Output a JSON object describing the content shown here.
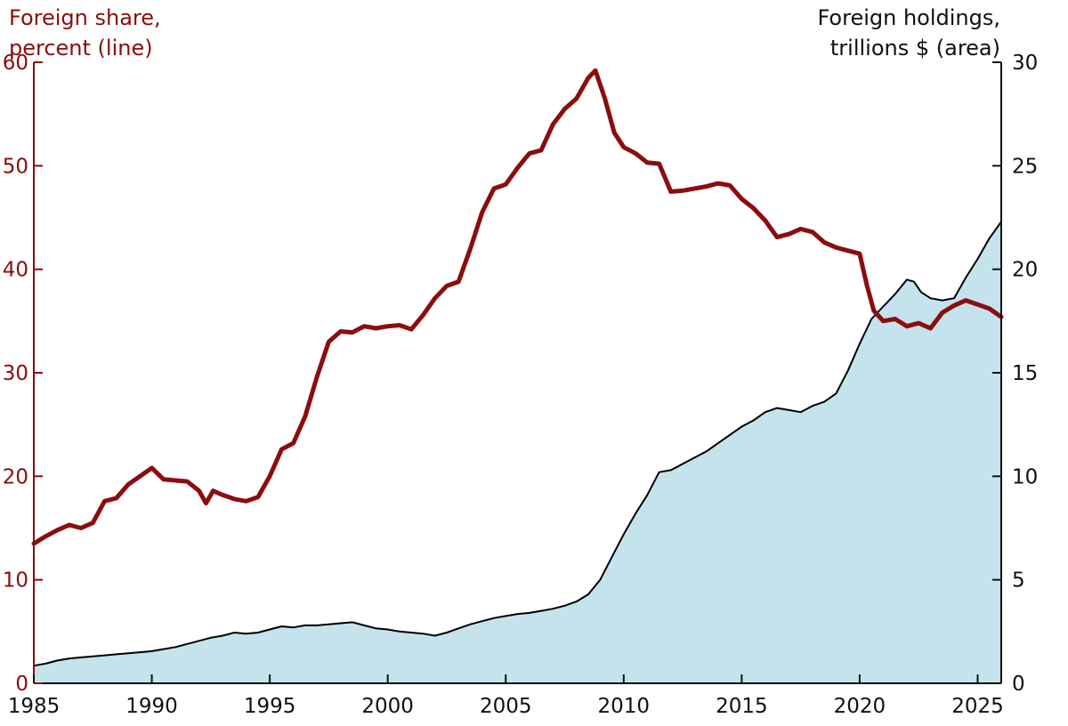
{
  "chart_data": {
    "type": "line+area",
    "left_axis": {
      "title_lines": [
        "Foreign share,",
        "percent (line)"
      ],
      "ylim": [
        0,
        60
      ],
      "ticks": [
        "0",
        "10",
        "20",
        "30",
        "40",
        "50",
        "60"
      ]
    },
    "right_axis": {
      "title_lines": [
        "Foreign holdings,",
        "trillions $ (area)"
      ],
      "ylim": [
        0,
        30
      ],
      "ticks": [
        "0",
        "5",
        "10",
        "15",
        "20",
        "25",
        "30"
      ]
    },
    "x_axis": {
      "xlim": [
        1985,
        2026
      ],
      "ticks": [
        "1985",
        "1990",
        "1995",
        "2000",
        "2005",
        "2010",
        "2015",
        "2020",
        "2025"
      ]
    },
    "grid": false,
    "series": [
      {
        "name": "Foreign share, percent (line)",
        "kind": "line",
        "axis": "left",
        "color": "#8b0d0d",
        "x": [
          1985.0,
          1985.5,
          1986.0,
          1986.5,
          1987.0,
          1987.5,
          1988.0,
          1988.5,
          1989.0,
          1989.5,
          1990.0,
          1990.5,
          1991.0,
          1991.5,
          1992.0,
          1992.3,
          1992.6,
          1993.0,
          1993.5,
          1994.0,
          1994.5,
          1995.0,
          1995.5,
          1996.0,
          1996.5,
          1997.0,
          1997.5,
          1998.0,
          1998.5,
          1999.0,
          1999.5,
          2000.0,
          2000.5,
          2001.0,
          2001.5,
          2002.0,
          2002.5,
          2003.0,
          2003.5,
          2004.0,
          2004.5,
          2005.0,
          2005.5,
          2006.0,
          2006.5,
          2007.0,
          2007.5,
          2008.0,
          2008.5,
          2008.8,
          2009.2,
          2009.6,
          2010.0,
          2010.5,
          2011.0,
          2011.5,
          2012.0,
          2012.5,
          2013.0,
          2013.5,
          2014.0,
          2014.5,
          2015.0,
          2015.5,
          2016.0,
          2016.5,
          2017.0,
          2017.5,
          2018.0,
          2018.5,
          2019.0,
          2019.5,
          2020.0,
          2020.3,
          2020.6,
          2021.0,
          2021.5,
          2022.0,
          2022.5,
          2023.0,
          2023.5,
          2024.0,
          2024.5,
          2025.0,
          2025.5,
          2026.0
        ],
        "values": [
          13.5,
          14.2,
          14.8,
          15.3,
          15.0,
          15.5,
          17.6,
          17.9,
          19.2,
          20.0,
          20.8,
          19.7,
          19.6,
          19.5,
          18.6,
          17.4,
          18.6,
          18.2,
          17.8,
          17.6,
          18.0,
          20.0,
          22.6,
          23.2,
          25.8,
          29.6,
          33.0,
          34.0,
          33.9,
          34.5,
          34.3,
          34.5,
          34.6,
          34.2,
          35.6,
          37.2,
          38.4,
          38.8,
          42.0,
          45.5,
          47.8,
          48.2,
          49.8,
          51.2,
          51.5,
          54.0,
          55.5,
          56.5,
          58.5,
          59.2,
          56.5,
          53.2,
          51.8,
          51.2,
          50.3,
          50.2,
          47.5,
          47.6,
          47.8,
          48.0,
          48.3,
          48.1,
          46.8,
          45.9,
          44.7,
          43.1,
          43.4,
          43.9,
          43.6,
          42.6,
          42.1,
          41.8,
          41.5,
          38.5,
          36.0,
          35.0,
          35.2,
          34.5,
          34.8,
          34.3,
          35.8,
          36.5,
          37.0,
          36.6,
          36.2,
          35.4
        ]
      },
      {
        "name": "Foreign holdings, trillions $ (area)",
        "kind": "area",
        "axis": "right",
        "color": "#c5e3ec",
        "line_color": "#000000",
        "x": [
          1985.0,
          1985.5,
          1986.0,
          1986.5,
          1987.0,
          1987.5,
          1988.0,
          1988.5,
          1989.0,
          1989.5,
          1990.0,
          1990.5,
          1991.0,
          1991.5,
          1992.0,
          1992.5,
          1993.0,
          1993.5,
          1994.0,
          1994.5,
          1995.0,
          1995.5,
          1996.0,
          1996.5,
          1997.0,
          1997.5,
          1998.0,
          1998.5,
          1999.0,
          1999.5,
          2000.0,
          2000.5,
          2001.0,
          2001.5,
          2002.0,
          2002.5,
          2003.0,
          2003.5,
          2004.0,
          2004.5,
          2005.0,
          2005.5,
          2006.0,
          2006.5,
          2007.0,
          2007.5,
          2008.0,
          2008.5,
          2009.0,
          2009.5,
          2010.0,
          2010.5,
          2011.0,
          2011.5,
          2012.0,
          2012.5,
          2013.0,
          2013.5,
          2014.0,
          2014.5,
          2015.0,
          2015.5,
          2016.0,
          2016.5,
          2017.0,
          2017.5,
          2018.0,
          2018.5,
          2019.0,
          2019.5,
          2020.0,
          2020.5,
          2021.0,
          2021.5,
          2022.0,
          2022.3,
          2022.6,
          2023.0,
          2023.5,
          2024.0,
          2024.5,
          2025.0,
          2025.5,
          2026.0
        ],
        "values": [
          0.85,
          0.95,
          1.1,
          1.2,
          1.25,
          1.3,
          1.35,
          1.4,
          1.45,
          1.5,
          1.55,
          1.65,
          1.75,
          1.9,
          2.05,
          2.2,
          2.3,
          2.45,
          2.4,
          2.45,
          2.6,
          2.75,
          2.7,
          2.8,
          2.8,
          2.85,
          2.9,
          2.95,
          2.8,
          2.65,
          2.6,
          2.5,
          2.45,
          2.4,
          2.3,
          2.45,
          2.65,
          2.85,
          3.0,
          3.15,
          3.25,
          3.35,
          3.4,
          3.5,
          3.6,
          3.75,
          3.95,
          4.3,
          5.0,
          6.1,
          7.2,
          8.2,
          9.1,
          10.2,
          10.3,
          10.6,
          10.9,
          11.2,
          11.6,
          12.0,
          12.4,
          12.7,
          13.1,
          13.3,
          13.2,
          13.1,
          13.4,
          13.6,
          14.0,
          15.1,
          16.4,
          17.6,
          18.2,
          18.8,
          19.5,
          19.4,
          18.9,
          18.6,
          18.5,
          18.6,
          19.6,
          20.5,
          21.5,
          22.3
        ]
      }
    ]
  }
}
